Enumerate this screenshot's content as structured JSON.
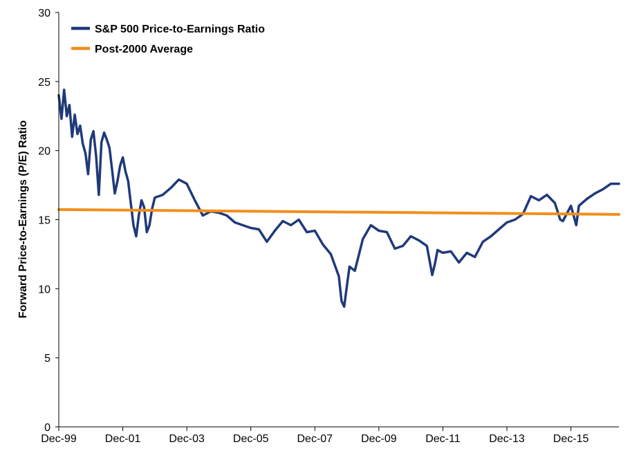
{
  "chart_data": {
    "type": "line",
    "title": "",
    "xlabel": "",
    "ylabel": "Forward Price-to-Earnings (P/E) Ratio",
    "ylim": [
      0,
      30
    ],
    "yticks": [
      0,
      5,
      10,
      15,
      20,
      25,
      30
    ],
    "xlim": [
      "1999-12",
      "2017-06"
    ],
    "xtick_labels": [
      "Dec-99",
      "Dec-01",
      "Dec-03",
      "Dec-05",
      "Dec-07",
      "Dec-09",
      "Dec-11",
      "Dec-13",
      "Dec-15"
    ],
    "grid": false,
    "legend_position": "top-left",
    "series": [
      {
        "name": "S&P 500 Price-to-Earnings Ratio",
        "color": "#1f3a7a",
        "x": [
          "1999-12",
          "2000-01",
          "2000-02",
          "2000-03",
          "2000-04",
          "2000-05",
          "2000-06",
          "2000-07",
          "2000-08",
          "2000-09",
          "2000-10",
          "2000-11",
          "2000-12",
          "2001-01",
          "2001-02",
          "2001-03",
          "2001-04",
          "2001-05",
          "2001-06",
          "2001-07",
          "2001-08",
          "2001-09",
          "2001-10",
          "2001-11",
          "2001-12",
          "2002-01",
          "2002-02",
          "2002-03",
          "2002-04",
          "2002-05",
          "2002-06",
          "2002-07",
          "2002-08",
          "2002-09",
          "2002-10",
          "2002-11",
          "2002-12",
          "2003-03",
          "2003-06",
          "2003-09",
          "2003-12",
          "2004-03",
          "2004-06",
          "2004-09",
          "2004-12",
          "2005-03",
          "2005-06",
          "2005-09",
          "2005-12",
          "2006-03",
          "2006-06",
          "2006-09",
          "2006-12",
          "2007-03",
          "2007-06",
          "2007-09",
          "2007-12",
          "2008-03",
          "2008-06",
          "2008-09",
          "2008-10",
          "2008-11",
          "2008-12",
          "2009-01",
          "2009-03",
          "2009-06",
          "2009-09",
          "2009-12",
          "2010-03",
          "2010-06",
          "2010-09",
          "2010-12",
          "2011-03",
          "2011-06",
          "2011-08",
          "2011-09",
          "2011-10",
          "2011-12",
          "2012-03",
          "2012-06",
          "2012-09",
          "2012-12",
          "2013-03",
          "2013-06",
          "2013-09",
          "2013-12",
          "2014-03",
          "2014-06",
          "2014-09",
          "2014-12",
          "2015-03",
          "2015-06",
          "2015-08",
          "2015-09",
          "2015-12",
          "2016-02",
          "2016-03",
          "2016-06",
          "2016-09",
          "2016-12",
          "2017-03",
          "2017-06"
        ],
        "values": [
          24.0,
          22.3,
          24.4,
          22.5,
          23.3,
          21.0,
          22.6,
          21.2,
          21.8,
          20.5,
          19.8,
          18.3,
          20.8,
          21.4,
          19.6,
          16.8,
          20.6,
          21.3,
          20.8,
          20.2,
          18.6,
          16.9,
          17.8,
          18.9,
          19.5,
          18.5,
          17.8,
          16.2,
          14.6,
          13.8,
          15.3,
          16.4,
          15.9,
          14.1,
          14.6,
          15.8,
          16.6,
          16.8,
          17.3,
          17.9,
          17.6,
          16.4,
          15.3,
          15.6,
          15.5,
          15.3,
          14.8,
          14.6,
          14.4,
          14.3,
          13.4,
          14.2,
          14.9,
          14.6,
          15.0,
          14.1,
          14.2,
          13.2,
          12.5,
          10.9,
          9.1,
          8.7,
          10.2,
          11.6,
          11.3,
          13.6,
          14.6,
          14.2,
          14.1,
          12.9,
          13.1,
          13.8,
          13.5,
          13.1,
          11.0,
          11.8,
          12.8,
          12.6,
          12.7,
          11.9,
          12.6,
          12.3,
          13.4,
          13.8,
          14.3,
          14.8,
          15.0,
          15.4,
          16.7,
          16.4,
          16.8,
          16.2,
          15.0,
          14.9,
          16.0,
          14.6,
          16.0,
          16.5,
          16.9,
          17.2,
          17.6,
          17.6
        ]
      },
      {
        "name": "Post-2000 Average",
        "color": "#f28e1c",
        "x": [
          "1999-12",
          "2017-06"
        ],
        "values": [
          15.73,
          15.38
        ]
      }
    ]
  }
}
